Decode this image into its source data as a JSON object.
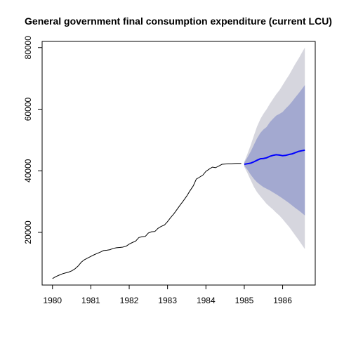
{
  "chart_data": {
    "type": "line",
    "title": "General government final consumption expenditure (current LCU)",
    "xlabel": "",
    "ylabel": "",
    "xlim": [
      1979.73,
      1986.85
    ],
    "ylim": [
      2900,
      82000
    ],
    "x_ticks": [
      1980,
      1981,
      1982,
      1983,
      1984,
      1985,
      1986
    ],
    "x_tick_labels": [
      "1980",
      "1981",
      "1982",
      "1983",
      "1984",
      "1985",
      "1986"
    ],
    "y_ticks": [
      20000,
      40000,
      60000,
      80000
    ],
    "y_tick_labels": [
      "20000",
      "40000",
      "60000",
      "80000"
    ],
    "grid": false,
    "legend": "none",
    "colors": {
      "history": "#000000",
      "forecast": "#0000ff",
      "band_80": "#a3a9d0",
      "band_95": "#d6d6de"
    },
    "series": [
      {
        "role": "history",
        "x": [
          1980.0,
          1980.08,
          1980.17,
          1980.25,
          1980.33,
          1980.42,
          1980.5,
          1980.58,
          1980.67,
          1980.75,
          1980.83,
          1980.92,
          1981.0,
          1981.08,
          1981.17,
          1981.25,
          1981.33,
          1981.42,
          1981.5,
          1981.58,
          1981.67,
          1981.75,
          1981.83,
          1981.92,
          1982.0,
          1982.08,
          1982.17,
          1982.25,
          1982.33,
          1982.42,
          1982.5,
          1982.58,
          1982.67,
          1982.75,
          1982.83,
          1982.92,
          1983.0,
          1983.08,
          1983.17,
          1983.25,
          1983.33,
          1983.42,
          1983.5,
          1983.58,
          1983.67,
          1983.75,
          1983.83,
          1983.92,
          1984.0,
          1984.08,
          1984.17,
          1984.25,
          1984.33,
          1984.42,
          1984.5,
          1984.58,
          1984.67,
          1984.75,
          1984.83,
          1984.92
        ],
        "values": [
          5000,
          5600,
          6100,
          6500,
          6800,
          7100,
          7500,
          8100,
          9100,
          10300,
          11100,
          11700,
          12200,
          12700,
          13200,
          13600,
          14100,
          14200,
          14400,
          14800,
          15000,
          15100,
          15200,
          15500,
          16200,
          16700,
          17200,
          18300,
          18600,
          18700,
          19800,
          20200,
          20300,
          21300,
          21900,
          22400,
          23500,
          24800,
          26100,
          27500,
          28900,
          30400,
          31800,
          33400,
          35100,
          37300,
          37900,
          38600,
          39800,
          40500,
          41200,
          41000,
          41500,
          42100,
          42200,
          42300,
          42300,
          42350,
          42400,
          42400
        ]
      },
      {
        "role": "forecast",
        "x": [
          1985.0,
          1985.08,
          1985.17,
          1985.25,
          1985.33,
          1985.42,
          1985.5,
          1985.58,
          1985.67,
          1985.75,
          1985.83,
          1985.92,
          1986.0,
          1986.08,
          1986.17,
          1986.25,
          1986.33,
          1986.42,
          1986.5,
          1986.58
        ],
        "values": [
          42100,
          42300,
          42500,
          42900,
          43400,
          43900,
          44000,
          44200,
          44700,
          45000,
          45200,
          45100,
          44900,
          45000,
          45300,
          45500,
          45900,
          46300,
          46500,
          46700
        ],
        "lo80": [
          41600,
          40400,
          38700,
          37400,
          36300,
          35400,
          34700,
          34200,
          33600,
          33000,
          32400,
          31700,
          31000,
          30300,
          29500,
          28700,
          27900,
          27100,
          26300,
          25500
        ],
        "hi80": [
          42600,
          44300,
          46300,
          48400,
          50500,
          52300,
          53400,
          54200,
          55800,
          56900,
          57900,
          58500,
          59100,
          60200,
          61300,
          62500,
          63800,
          65200,
          66500,
          67800
        ],
        "lo95": [
          41300,
          39300,
          36900,
          34800,
          33100,
          31700,
          30500,
          29300,
          28300,
          27400,
          26400,
          25400,
          24300,
          23100,
          21800,
          20400,
          19000,
          17500,
          16000,
          14600
        ],
        "hi95": [
          42900,
          45400,
          48400,
          51400,
          54300,
          56800,
          58500,
          59900,
          61800,
          63300,
          64800,
          66200,
          67800,
          69400,
          71100,
          72900,
          74700,
          76500,
          78300,
          80000
        ]
      }
    ]
  }
}
